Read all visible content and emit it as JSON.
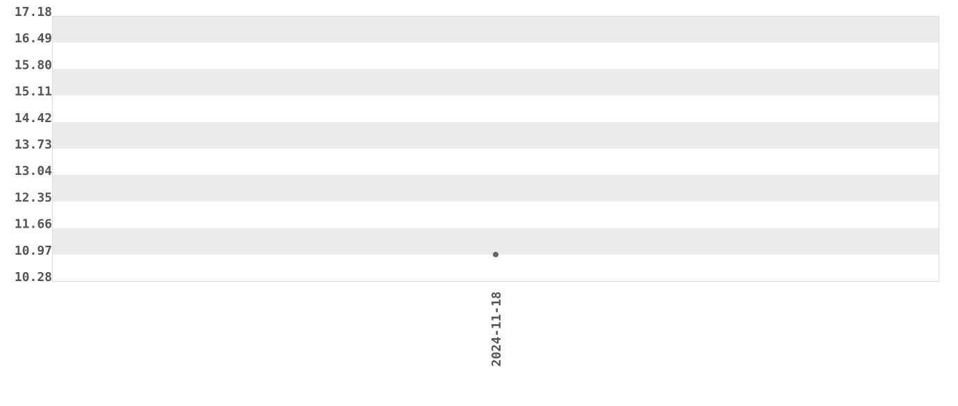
{
  "chart_data": {
    "type": "scatter",
    "title": "",
    "xlabel": "",
    "ylabel": "",
    "ylim": [
      10.28,
      17.18
    ],
    "y_ticks": [
      "17.18",
      "16.49",
      "15.80",
      "15.11",
      "14.42",
      "13.73",
      "13.04",
      "12.35",
      "11.66",
      "10.97",
      "10.28"
    ],
    "x_ticks": [
      "2024-11-18"
    ],
    "grid": "alternating horizontal bands",
    "colors": {
      "band": "#ebebeb",
      "point": "#666666",
      "text": "#555555",
      "border": "#dddddd"
    },
    "points": [
      {
        "x": "2024-11-18",
        "y": 10.97
      }
    ]
  }
}
